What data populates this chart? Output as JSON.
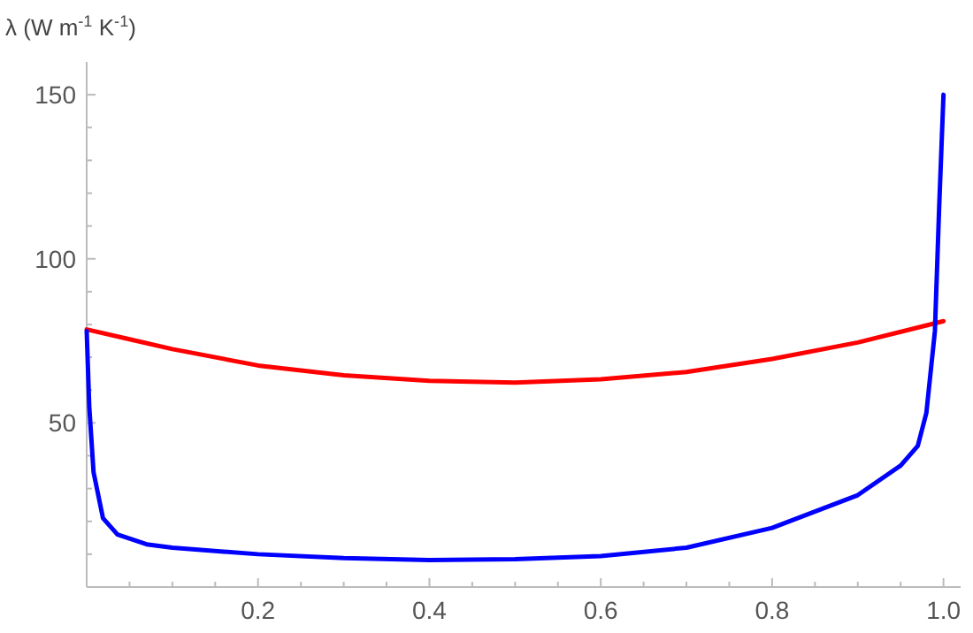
{
  "chart_data": {
    "type": "line",
    "ylabel": "λ (W m$^{-1}$ K$^{-1}$)",
    "xlim": [
      0,
      1.02
    ],
    "ylim": [
      0,
      160
    ],
    "xticks": [
      {
        "value": 0.05,
        "label": null
      },
      {
        "value": 0.1,
        "label": null
      },
      {
        "value": 0.15,
        "label": null
      },
      0.2,
      {
        "value": 0.25,
        "label": null
      },
      {
        "value": 0.3,
        "label": null
      },
      {
        "value": 0.35,
        "label": null
      },
      0.4,
      {
        "value": 0.45,
        "label": null
      },
      {
        "value": 0.5,
        "label": null
      },
      {
        "value": 0.55,
        "label": null
      },
      0.6,
      {
        "value": 0.65,
        "label": null
      },
      {
        "value": 0.7,
        "label": null
      },
      {
        "value": 0.75,
        "label": null
      },
      0.8,
      {
        "value": 0.85,
        "label": null
      },
      {
        "value": 0.9,
        "label": null
      },
      {
        "value": 0.95,
        "label": null
      },
      {
        "value": 1.0,
        "label": "1.0"
      }
    ],
    "yticks": [
      {
        "value": 10,
        "label": null
      },
      {
        "value": 20,
        "label": null
      },
      {
        "value": 30,
        "label": null
      },
      {
        "value": 40,
        "label": null
      },
      50,
      {
        "value": 60,
        "label": null
      },
      {
        "value": 70,
        "label": null
      },
      {
        "value": 80,
        "label": null
      },
      {
        "value": 90,
        "label": null
      },
      100,
      {
        "value": 110,
        "label": null
      },
      {
        "value": 120,
        "label": null
      },
      {
        "value": 130,
        "label": null
      },
      {
        "value": 140,
        "label": null
      },
      150
    ],
    "grid": false,
    "marker": "none",
    "line_style": "solid",
    "series": [
      {
        "color": "#ff0000",
        "x": [
          0,
          0.05,
          0.1,
          0.2,
          0.3,
          0.4,
          0.5,
          0.6,
          0.7,
          0.8,
          0.9,
          1.0
        ],
        "values": [
          78.5,
          75.5,
          72.5,
          67.5,
          64.5,
          62.8,
          62.3,
          63.3,
          65.5,
          69.5,
          74.5,
          81
        ]
      },
      {
        "color": "#0000ff",
        "x": [
          0,
          0.003,
          0.008,
          0.019,
          0.036,
          0.07,
          0.1,
          0.2,
          0.3,
          0.4,
          0.5,
          0.6,
          0.7,
          0.8,
          0.9,
          0.95,
          0.97,
          0.98,
          0.99,
          0.995,
          1.0
        ],
        "values": [
          78,
          55,
          35,
          21,
          16,
          13,
          12,
          10,
          8.8,
          8.2,
          8.5,
          9.4,
          12,
          18,
          28,
          37,
          43,
          53,
          78,
          116,
          150
        ]
      }
    ]
  }
}
